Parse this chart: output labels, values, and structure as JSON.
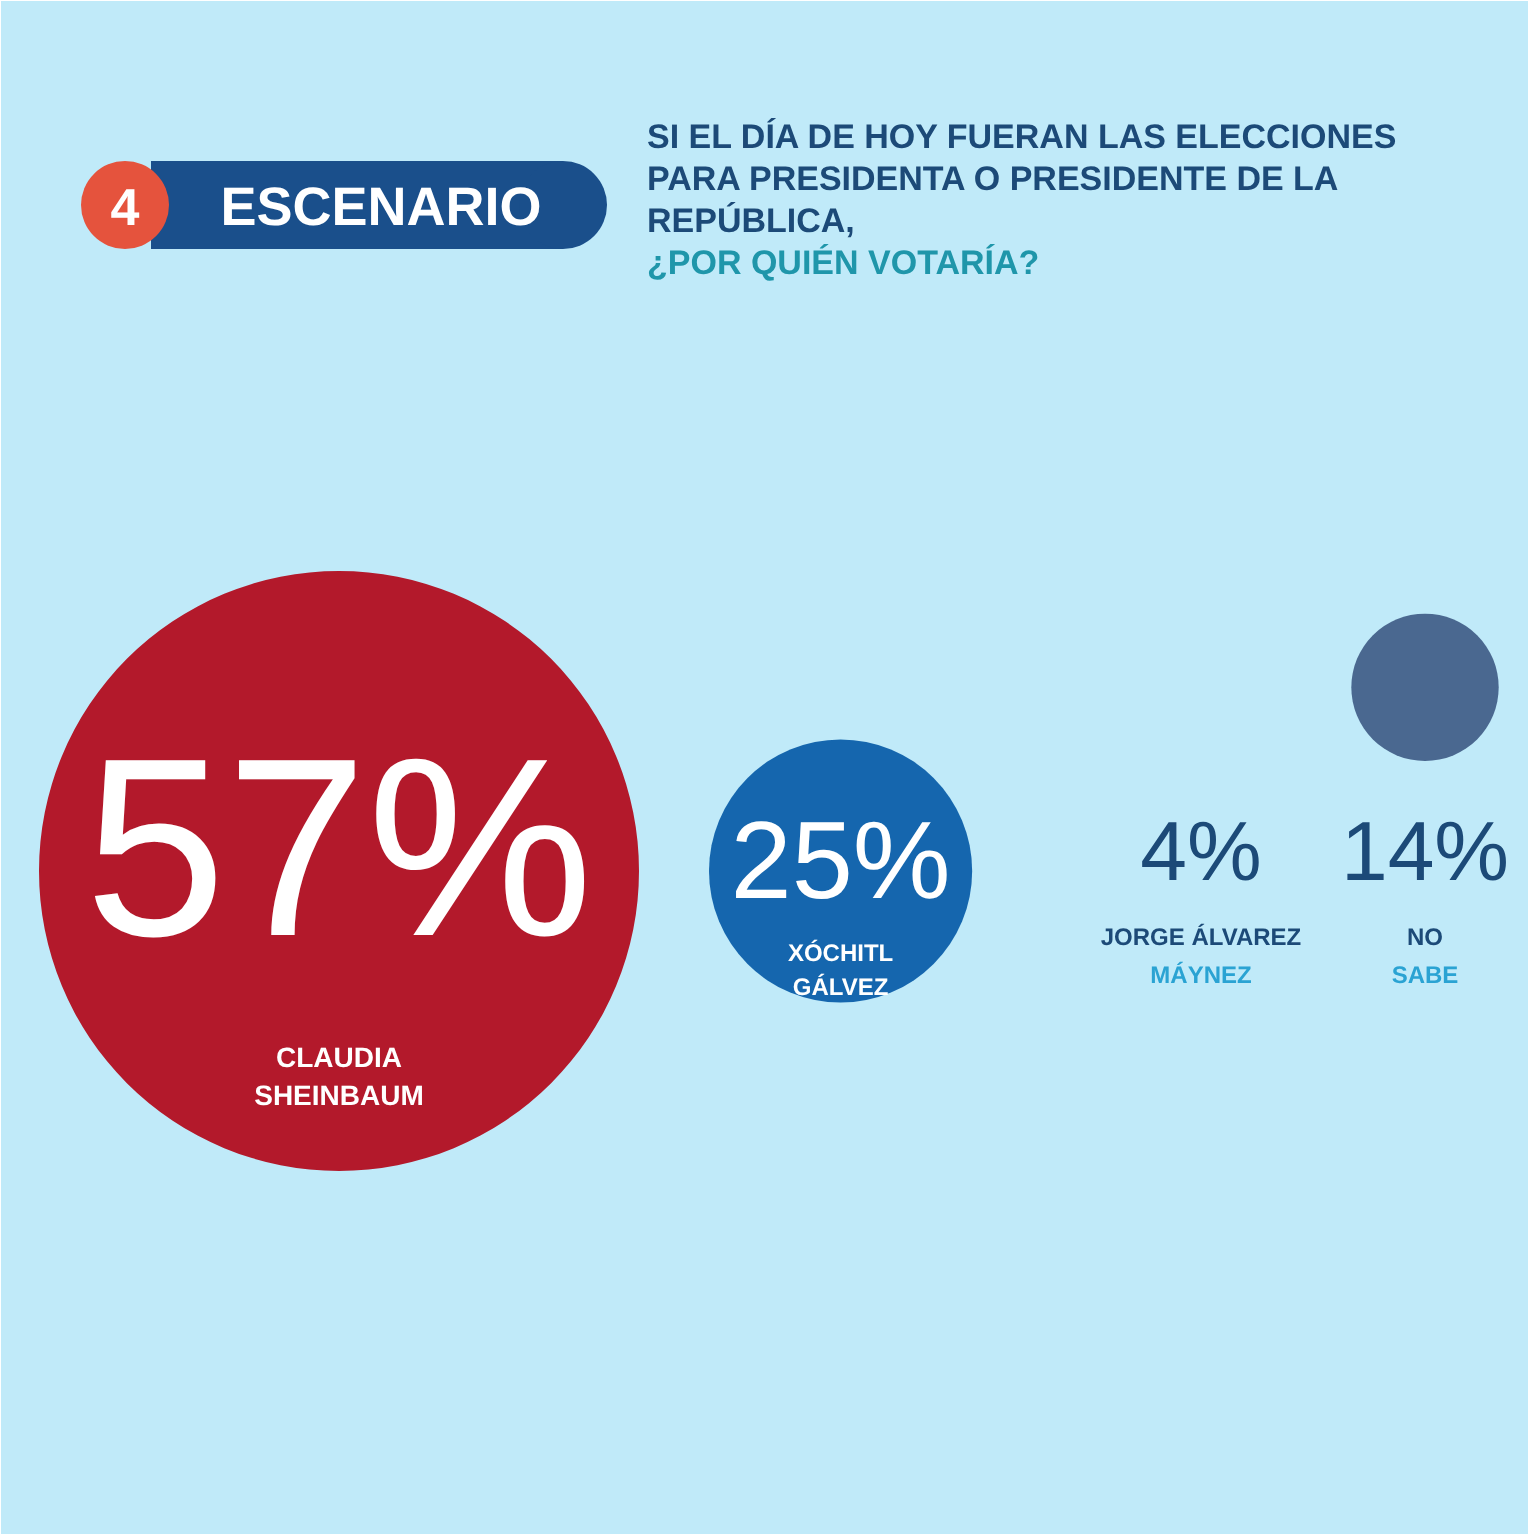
{
  "chart_data": {
    "type": "other",
    "title": "SI EL DÍA DE HOY FUERAN LAS ELECCIONES PARA PRESIDENTA O PRESIDENTE DE LA REPÚBLICA,",
    "subtitle": "¿POR QUIÉN VOTARÍA?",
    "annotations": [
      "4",
      "ESCENARIO"
    ],
    "categories": [
      "CLAUDIA SHEINBAUM",
      "XÓCHITL GÁLVEZ",
      "JORGE ÁLVAREZ MÁYNEZ",
      "NO SABE"
    ],
    "values": [
      57,
      25,
      4,
      14
    ],
    "value_labels": [
      "57%",
      "25%",
      "4%",
      "14%"
    ],
    "colors": [
      "#b3192b",
      "#1566ae",
      null,
      "#4a6890"
    ]
  }
}
